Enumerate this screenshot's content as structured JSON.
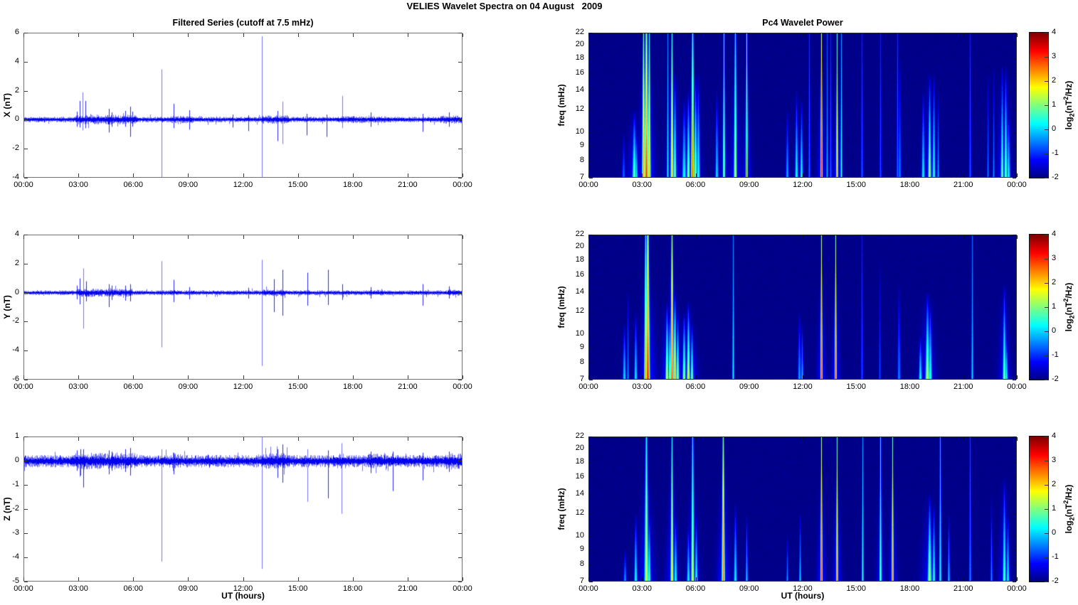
{
  "page": {
    "title": "VELIES Wavelet Spectra on 04 August   2009"
  },
  "labels": {
    "xlabel": "UT (hours)",
    "cb_log": "log",
    "cb_sub": "2",
    "cb_mid": "(nT",
    "cb_sup": "2",
    "cb_end": "/Hz)"
  },
  "chart_data": [
    {
      "id": "ts_x",
      "type": "line",
      "panel": "left-top",
      "title": "Filtered Series (cutoff at 7.5 mHz)",
      "ylabel": "X (nT)",
      "xlabel": "",
      "ylim": [
        -4,
        6
      ],
      "yticks": [
        6,
        4,
        2,
        0,
        -2,
        -4
      ],
      "x_range_hours": [
        0,
        24
      ],
      "xticks": [
        0,
        3,
        6,
        9,
        12,
        15,
        18,
        21,
        24
      ],
      "xtick_labels": [
        "00:00",
        "03:00",
        "06:00",
        "09:00",
        "12:00",
        "15:00",
        "18:00",
        "21:00",
        "00:00"
      ],
      "line_color": "#0000EE",
      "seed": 11,
      "noise_amplitude": 0.15,
      "noise_bursts": [
        [
          2.8,
          6.2,
          1.8
        ],
        [
          8.0,
          9.3,
          1.3
        ],
        [
          13.0,
          14.5,
          1.5
        ],
        [
          17.2,
          20.0,
          1.25
        ],
        [
          22.8,
          24,
          1.5
        ]
      ],
      "spikes": [
        [
          2.9,
          0.55,
          -0.5
        ],
        [
          3.05,
          1.3,
          -0.55
        ],
        [
          3.2,
          1.9,
          -0.75
        ],
        [
          3.35,
          1.3,
          -0.6
        ],
        [
          4.65,
          0.75,
          -0.9
        ],
        [
          4.8,
          0.5,
          -0.5
        ],
        [
          5.55,
          0.6,
          -0.5
        ],
        [
          5.8,
          0.9,
          -1.2
        ],
        [
          5.95,
          0.55,
          -0.5
        ],
        [
          7.55,
          3.5,
          -4.0
        ],
        [
          8.2,
          1.1,
          -0.6
        ],
        [
          9.05,
          0.65,
          -0.7
        ],
        [
          11.45,
          0.35,
          -0.55
        ],
        [
          12.3,
          0.3,
          -0.8
        ],
        [
          13.05,
          5.8,
          -4.0
        ],
        [
          13.9,
          0.6,
          -1.5
        ],
        [
          14.15,
          1.25,
          -1.7
        ],
        [
          15.5,
          0.4,
          -1.1
        ],
        [
          16.6,
          0.35,
          -1.2
        ],
        [
          17.45,
          1.65,
          -0.6
        ],
        [
          19.0,
          0.5,
          -0.5
        ],
        [
          21.85,
          0.4,
          -0.85
        ],
        [
          23.3,
          0.5,
          -0.5
        ]
      ]
    },
    {
      "id": "ts_y",
      "type": "line",
      "panel": "left-middle",
      "title": "",
      "ylabel": "Y (nT)",
      "xlabel": "",
      "ylim": [
        -6,
        4
      ],
      "yticks": [
        4,
        2,
        0,
        -2,
        -4,
        -6
      ],
      "x_range_hours": [
        0,
        24
      ],
      "xticks": [
        0,
        3,
        6,
        9,
        12,
        15,
        18,
        21,
        24
      ],
      "xtick_labels": [
        "00:00",
        "03:00",
        "06:00",
        "09:00",
        "12:00",
        "15:00",
        "18:00",
        "21:00",
        "00:00"
      ],
      "line_color": "#0000EE",
      "seed": 22,
      "noise_amplitude": 0.13,
      "noise_bursts": [
        [
          2.9,
          5.9,
          1.7
        ],
        [
          8.0,
          8.6,
          1.2
        ],
        [
          13.0,
          14.3,
          1.4
        ],
        [
          18.8,
          19.8,
          1.2
        ],
        [
          23.2,
          24,
          1.4
        ]
      ],
      "spikes": [
        [
          2.9,
          0.5,
          -0.45
        ],
        [
          3.05,
          1.0,
          -0.8
        ],
        [
          3.25,
          1.7,
          -2.5
        ],
        [
          3.4,
          0.8,
          -0.6
        ],
        [
          4.65,
          0.6,
          -1.0
        ],
        [
          4.8,
          0.5,
          -0.5
        ],
        [
          5.55,
          0.5,
          -0.55
        ],
        [
          5.8,
          0.6,
          -0.6
        ],
        [
          7.55,
          2.2,
          -3.8
        ],
        [
          8.2,
          0.9,
          -0.65
        ],
        [
          9.05,
          0.4,
          -0.45
        ],
        [
          12.3,
          0.35,
          -0.4
        ],
        [
          13.05,
          2.3,
          -5.1
        ],
        [
          13.7,
          0.95,
          -1.35
        ],
        [
          14.15,
          1.6,
          -1.6
        ],
        [
          15.55,
          1.4,
          -0.9
        ],
        [
          16.65,
          1.6,
          -0.85
        ],
        [
          17.45,
          0.6,
          -0.5
        ],
        [
          19.0,
          0.4,
          -0.4
        ],
        [
          21.85,
          0.6,
          -0.9
        ],
        [
          23.3,
          0.45,
          -0.4
        ]
      ]
    },
    {
      "id": "ts_z",
      "type": "line",
      "panel": "left-bottom",
      "title": "",
      "ylabel": "Z (nT)",
      "xlabel": "UT (hours)",
      "ylim": [
        -5,
        1
      ],
      "yticks": [
        1,
        0,
        -1,
        -2,
        -3,
        -4,
        -5
      ],
      "x_range_hours": [
        0,
        24
      ],
      "xticks": [
        0,
        3,
        6,
        9,
        12,
        15,
        18,
        21,
        24
      ],
      "xtick_labels": [
        "00:00",
        "03:00",
        "06:00",
        "09:00",
        "12:00",
        "15:00",
        "18:00",
        "21:00",
        "00:00"
      ],
      "line_color": "#0000EE",
      "seed": 33,
      "noise_amplitude": 0.2,
      "noise_bursts": [
        [
          2.8,
          6.2,
          1.35
        ],
        [
          7.9,
          8.6,
          1.15
        ],
        [
          13.0,
          14.5,
          1.3
        ],
        [
          16.9,
          17.6,
          1.2
        ],
        [
          18.8,
          20.5,
          1.2
        ],
        [
          23.0,
          24,
          1.3
        ]
      ],
      "spikes": [
        [
          2.9,
          0.45,
          -0.4
        ],
        [
          3.1,
          0.5,
          -0.6
        ],
        [
          3.25,
          0.5,
          -1.1
        ],
        [
          4.65,
          0.45,
          -0.55
        ],
        [
          4.8,
          0.4,
          -0.4
        ],
        [
          5.55,
          0.5,
          -0.45
        ],
        [
          5.8,
          0.55,
          -0.6
        ],
        [
          7.55,
          0.5,
          -4.2
        ],
        [
          8.2,
          0.35,
          -0.55
        ],
        [
          13.05,
          1.0,
          -4.5
        ],
        [
          13.9,
          0.5,
          -0.7
        ],
        [
          14.15,
          0.7,
          -0.9
        ],
        [
          15.55,
          0.5,
          -1.7
        ],
        [
          16.65,
          0.45,
          -1.55
        ],
        [
          17.4,
          0.75,
          -2.2
        ],
        [
          19.0,
          0.4,
          -0.5
        ],
        [
          20.2,
          0.4,
          -1.25
        ],
        [
          21.85,
          0.35,
          -0.8
        ],
        [
          23.3,
          0.4,
          -0.45
        ]
      ]
    },
    {
      "id": "wv_x",
      "type": "heatmap",
      "panel": "right-top",
      "title": "Pc4 Wavelet Power",
      "ylabel": "freq (mHz)",
      "xlabel": "",
      "yscale": "log",
      "ylim": [
        7,
        22
      ],
      "yticks": [
        22,
        20,
        18,
        16,
        14,
        12,
        10,
        9,
        8,
        7
      ],
      "x_range_hours": [
        0,
        24
      ],
      "xticks": [
        0,
        3,
        6,
        9,
        12,
        15,
        18,
        21,
        24
      ],
      "xtick_labels": [
        "00:00",
        "03:00",
        "06:00",
        "09:00",
        "12:00",
        "15:00",
        "18:00",
        "21:00",
        "00:00"
      ],
      "background_power": -2,
      "seed": 44,
      "colorbar": {
        "label": "log2(nT^2/Hz)",
        "range": [
          -2,
          4
        ],
        "ticks": [
          4,
          3,
          2,
          1,
          0,
          -1,
          -2
        ],
        "colormap": "jet"
      },
      "streaks": [
        [
          1.9,
          -0.6,
          10,
          1.5
        ],
        [
          2.5,
          1.0,
          12,
          2
        ],
        [
          2.65,
          0.2,
          10,
          1.5
        ],
        [
          3.05,
          2.4,
          22,
          1.5
        ],
        [
          3.2,
          3.0,
          22,
          2
        ],
        [
          3.35,
          2.0,
          22,
          1.5
        ],
        [
          4.4,
          0.3,
          22,
          1
        ],
        [
          4.65,
          2.0,
          22,
          1.5
        ],
        [
          4.8,
          1.0,
          16,
          1.5
        ],
        [
          5.3,
          0.4,
          13,
          2
        ],
        [
          5.55,
          1.4,
          14,
          1.5
        ],
        [
          5.8,
          2.9,
          22,
          1.5
        ],
        [
          5.95,
          1.3,
          16,
          1.5
        ],
        [
          6.1,
          0.6,
          16,
          1.5
        ],
        [
          7.15,
          0.2,
          14,
          1.5
        ],
        [
          7.55,
          2.0,
          22,
          1
        ],
        [
          8.2,
          1.6,
          22,
          1.5
        ],
        [
          8.85,
          2.9,
          22,
          1
        ],
        [
          11.1,
          -0.2,
          12,
          1.5
        ],
        [
          11.65,
          0.5,
          14,
          1.5
        ],
        [
          11.9,
          0.4,
          13,
          1.5
        ],
        [
          12.35,
          -0.5,
          22,
          1
        ],
        [
          13.05,
          3.4,
          22,
          1
        ],
        [
          13.35,
          -0.2,
          22,
          1
        ],
        [
          13.55,
          -0.6,
          22,
          1
        ],
        [
          13.9,
          2.2,
          22,
          1
        ],
        [
          14.15,
          0.5,
          22,
          1
        ],
        [
          15.3,
          -0.6,
          22,
          1
        ],
        [
          16.35,
          -0.7,
          22,
          1
        ],
        [
          17.3,
          -0.5,
          22,
          1
        ],
        [
          17.45,
          -0.5,
          18,
          1.5
        ],
        [
          18.75,
          0.4,
          14,
          1.5
        ],
        [
          19.1,
          1.4,
          16,
          1.5
        ],
        [
          19.35,
          0.6,
          16,
          1.5
        ],
        [
          19.6,
          -0.2,
          14,
          1
        ],
        [
          21.4,
          -0.6,
          22,
          1
        ],
        [
          22.4,
          -0.5,
          16,
          1
        ],
        [
          22.7,
          -0.4,
          17,
          1
        ],
        [
          23.2,
          0.9,
          17,
          1.5
        ],
        [
          23.4,
          1.1,
          17,
          1.5
        ],
        [
          23.55,
          0.4,
          12,
          1.5
        ]
      ]
    },
    {
      "id": "wv_y",
      "type": "heatmap",
      "panel": "right-middle",
      "title": "",
      "ylabel": "freq (mHz)",
      "xlabel": "",
      "yscale": "log",
      "ylim": [
        7,
        22
      ],
      "yticks": [
        22,
        20,
        18,
        16,
        14,
        12,
        10,
        9,
        8,
        7
      ],
      "x_range_hours": [
        0,
        24
      ],
      "xticks": [
        0,
        3,
        6,
        9,
        12,
        15,
        18,
        21,
        24
      ],
      "xtick_labels": [
        "00:00",
        "03:00",
        "06:00",
        "09:00",
        "12:00",
        "15:00",
        "18:00",
        "21:00",
        "00:00"
      ],
      "background_power": -2,
      "seed": 55,
      "colorbar": {
        "label": "log2(nT^2/Hz)",
        "range": [
          -2,
          4
        ],
        "ticks": [
          4,
          3,
          2,
          1,
          0,
          -1,
          -2
        ],
        "colormap": "jet"
      },
      "streaks": [
        [
          1.95,
          0.2,
          11,
          1.5
        ],
        [
          2.15,
          -0.3,
          14,
          1
        ],
        [
          2.6,
          0.3,
          12,
          1.5
        ],
        [
          3.15,
          2.4,
          22,
          1.5
        ],
        [
          3.3,
          3.2,
          22,
          2
        ],
        [
          4.35,
          1.8,
          13,
          1.5
        ],
        [
          4.5,
          1.4,
          12,
          1.5
        ],
        [
          4.65,
          3.0,
          22,
          1.5
        ],
        [
          4.8,
          2.4,
          14,
          1.5
        ],
        [
          4.95,
          1.2,
          12,
          1.5
        ],
        [
          5.3,
          1.4,
          12,
          1.5
        ],
        [
          5.55,
          2.0,
          13,
          1.5
        ],
        [
          5.75,
          1.0,
          11,
          1.5
        ],
        [
          8.1,
          0.3,
          22,
          1
        ],
        [
          11.8,
          -0.2,
          12,
          1.5
        ],
        [
          11.95,
          0.1,
          11,
          1
        ],
        [
          13.05,
          3.0,
          22,
          1
        ],
        [
          13.85,
          2.8,
          22,
          1
        ],
        [
          15.3,
          -0.7,
          22,
          1
        ],
        [
          16.3,
          -0.8,
          18,
          1
        ],
        [
          17.4,
          -0.4,
          15,
          1.5
        ],
        [
          18.6,
          0.5,
          10,
          1.5
        ],
        [
          19.0,
          1.5,
          14,
          2
        ],
        [
          19.15,
          0.8,
          13,
          1.5
        ],
        [
          21.5,
          0.1,
          22,
          1
        ],
        [
          23.3,
          1.2,
          15,
          1.5
        ],
        [
          23.45,
          0.4,
          10,
          1.5
        ]
      ]
    },
    {
      "id": "wv_z",
      "type": "heatmap",
      "panel": "right-bottom",
      "title": "",
      "ylabel": "freq (mHz)",
      "xlabel": "UT (hours)",
      "yscale": "log",
      "ylim": [
        7,
        22
      ],
      "yticks": [
        22,
        20,
        18,
        16,
        14,
        12,
        10,
        9,
        8,
        7
      ],
      "x_range_hours": [
        0,
        24
      ],
      "xticks": [
        0,
        3,
        6,
        9,
        12,
        15,
        18,
        21,
        24
      ],
      "xtick_labels": [
        "00:00",
        "03:00",
        "06:00",
        "09:00",
        "12:00",
        "15:00",
        "18:00",
        "21:00",
        "00:00"
      ],
      "background_power": -2,
      "seed": 66,
      "colorbar": {
        "label": "log2(nT^2/Hz)",
        "range": [
          -2,
          4
        ],
        "ticks": [
          4,
          3,
          2,
          1,
          0,
          -1,
          -2
        ],
        "colormap": "jet"
      },
      "streaks": [
        [
          2.0,
          -0.3,
          9,
          1.5
        ],
        [
          2.6,
          0.5,
          12,
          1.5
        ],
        [
          3.2,
          1.6,
          22,
          2
        ],
        [
          3.35,
          0.8,
          12,
          1.5
        ],
        [
          4.65,
          1.8,
          22,
          1.5
        ],
        [
          4.85,
          0.5,
          12,
          1.5
        ],
        [
          5.55,
          0.4,
          11,
          1.5
        ],
        [
          5.8,
          1.8,
          22,
          1.5
        ],
        [
          6.0,
          0.5,
          12,
          1.5
        ],
        [
          7.5,
          2.8,
          22,
          1.5
        ],
        [
          8.2,
          0.4,
          13,
          1.5
        ],
        [
          8.85,
          0.2,
          12,
          1
        ],
        [
          11.1,
          -0.3,
          10,
          1
        ],
        [
          11.85,
          0.1,
          12,
          1
        ],
        [
          13.05,
          3.0,
          22,
          1
        ],
        [
          13.9,
          2.5,
          22,
          1
        ],
        [
          15.35,
          0.6,
          22,
          1
        ],
        [
          16.35,
          1.5,
          22,
          1
        ],
        [
          17.05,
          2.5,
          22,
          1
        ],
        [
          19.1,
          1.3,
          14,
          2
        ],
        [
          19.35,
          0.6,
          13,
          1.5
        ],
        [
          19.7,
          0.8,
          22,
          1
        ],
        [
          20.2,
          0.2,
          12,
          1
        ],
        [
          21.4,
          -0.3,
          22,
          1
        ],
        [
          22.6,
          -0.3,
          14,
          1
        ],
        [
          23.3,
          1.0,
          16,
          1.5
        ],
        [
          23.5,
          0.4,
          12,
          1.5
        ]
      ]
    }
  ]
}
